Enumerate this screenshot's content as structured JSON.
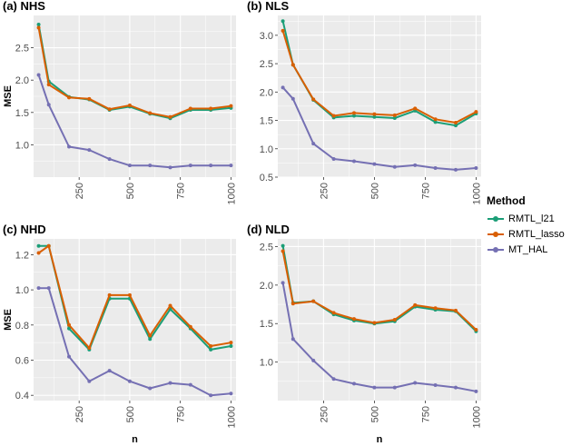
{
  "chart_data": [
    {
      "type": "line",
      "title": "(a) NHS",
      "xlabel": "",
      "ylabel": "MSE",
      "x": [
        50,
        100,
        200,
        300,
        400,
        500,
        600,
        700,
        800,
        900,
        1000
      ],
      "xlim": [
        25,
        1025
      ],
      "ylim": [
        0.5,
        3.0
      ],
      "xticks": [
        "250",
        "500",
        "750",
        "1000"
      ],
      "yticks": [
        "1.0",
        "1.5",
        "2.0",
        "2.5"
      ],
      "series": [
        {
          "name": "RMTL_l21",
          "values": [
            2.86,
            1.98,
            1.74,
            1.7,
            1.54,
            1.59,
            1.48,
            1.41,
            1.54,
            1.54,
            1.57
          ]
        },
        {
          "name": "RMTL_lasso",
          "values": [
            2.81,
            1.93,
            1.73,
            1.71,
            1.55,
            1.61,
            1.49,
            1.43,
            1.56,
            1.56,
            1.6
          ]
        },
        {
          "name": "MT_HAL",
          "values": [
            2.08,
            1.62,
            0.97,
            0.92,
            0.78,
            0.68,
            0.68,
            0.65,
            0.68,
            0.68,
            0.68
          ]
        }
      ]
    },
    {
      "type": "line",
      "title": "(b) NLS",
      "xlabel": "",
      "ylabel": "",
      "x": [
        50,
        100,
        200,
        300,
        400,
        500,
        600,
        700,
        800,
        900,
        1000
      ],
      "xlim": [
        25,
        1025
      ],
      "ylim": [
        0.5,
        3.35
      ],
      "xticks": [
        "250",
        "500",
        "750",
        "1000"
      ],
      "yticks": [
        "0.5",
        "1.0",
        "1.5",
        "2.0",
        "2.5",
        "3.0"
      ],
      "series": [
        {
          "name": "RMTL_l21",
          "values": [
            3.25,
            2.48,
            1.86,
            1.55,
            1.58,
            1.56,
            1.54,
            1.67,
            1.47,
            1.41,
            1.62
          ]
        },
        {
          "name": "RMTL_lasso",
          "values": [
            3.08,
            2.48,
            1.87,
            1.58,
            1.63,
            1.61,
            1.59,
            1.71,
            1.52,
            1.46,
            1.65
          ]
        },
        {
          "name": "MT_HAL",
          "values": [
            2.08,
            1.88,
            1.09,
            0.82,
            0.78,
            0.73,
            0.68,
            0.71,
            0.66,
            0.63,
            0.66
          ]
        }
      ]
    },
    {
      "type": "line",
      "title": "(c) NHD",
      "xlabel": "n",
      "ylabel": "MSE",
      "x": [
        50,
        100,
        200,
        300,
        400,
        500,
        600,
        700,
        800,
        900,
        1000
      ],
      "xlim": [
        25,
        1025
      ],
      "ylim": [
        0.37,
        1.29
      ],
      "xticks": [
        "250",
        "500",
        "750",
        "1000"
      ],
      "yticks": [
        "0.4",
        "0.6",
        "0.8",
        "1.0",
        "1.2"
      ],
      "series": [
        {
          "name": "RMTL_l21",
          "values": [
            1.25,
            1.25,
            0.78,
            0.66,
            0.95,
            0.95,
            0.72,
            0.89,
            0.78,
            0.66,
            0.68
          ]
        },
        {
          "name": "RMTL_lasso",
          "values": [
            1.21,
            1.25,
            0.8,
            0.67,
            0.97,
            0.97,
            0.74,
            0.91,
            0.79,
            0.68,
            0.7
          ]
        },
        {
          "name": "MT_HAL",
          "values": [
            1.01,
            1.01,
            0.62,
            0.48,
            0.54,
            0.48,
            0.44,
            0.47,
            0.46,
            0.4,
            0.41
          ]
        }
      ]
    },
    {
      "type": "line",
      "title": "(d) NLD",
      "xlabel": "n",
      "ylabel": "",
      "x": [
        50,
        100,
        200,
        300,
        400,
        500,
        600,
        700,
        800,
        900,
        1000
      ],
      "xlim": [
        25,
        1025
      ],
      "ylim": [
        0.5,
        2.6
      ],
      "xticks": [
        "250",
        "500",
        "750",
        "1000"
      ],
      "yticks": [
        "1.0",
        "1.5",
        "2.0",
        "2.5"
      ],
      "series": [
        {
          "name": "RMTL_l21",
          "values": [
            2.51,
            1.77,
            1.79,
            1.62,
            1.54,
            1.5,
            1.53,
            1.72,
            1.68,
            1.66,
            1.4
          ]
        },
        {
          "name": "RMTL_lasso",
          "values": [
            2.44,
            1.76,
            1.79,
            1.64,
            1.56,
            1.51,
            1.55,
            1.74,
            1.7,
            1.67,
            1.42
          ]
        },
        {
          "name": "MT_HAL",
          "values": [
            2.03,
            1.3,
            1.02,
            0.78,
            0.72,
            0.67,
            0.67,
            0.73,
            0.7,
            0.67,
            0.62
          ]
        }
      ]
    }
  ],
  "legend": {
    "title": "Method",
    "items": [
      {
        "label": "RMTL_l21",
        "color": "#1b9e77"
      },
      {
        "label": "RMTL_lasso",
        "color": "#d95f02"
      },
      {
        "label": "MT_HAL",
        "color": "#7570b3"
      }
    ]
  },
  "panel_background": "#ebebeb",
  "grid_color": "#ffffff"
}
